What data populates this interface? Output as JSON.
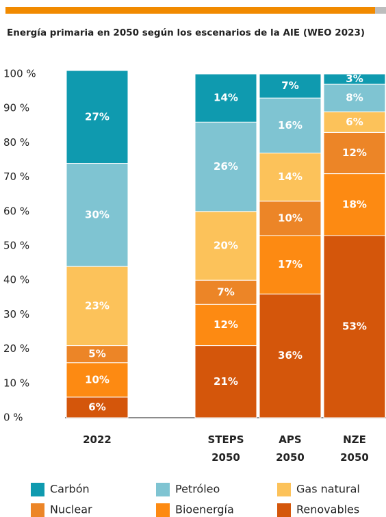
{
  "chart_data": {
    "type": "stacked_bar",
    "title": "Energía primaria en 2050 según los escenarios de la AIE  (WEO 2023)",
    "categories": [
      "2022",
      null,
      "STEPS 2050",
      "APS 2050",
      "NZE 2050"
    ],
    "series": [
      {
        "name": "Carbón",
        "color": "#0f9aaf",
        "values": [
          27,
          null,
          14,
          7,
          3
        ],
        "value_labels": [
          "27%",
          null,
          "14%",
          "7%",
          "3%"
        ]
      },
      {
        "name": "Petróleo",
        "color": "#7fc4d2",
        "values": [
          30,
          null,
          26,
          16,
          8
        ],
        "value_labels": [
          "30%",
          null,
          "26%",
          "16%",
          "8%"
        ]
      },
      {
        "name": "Gas natural",
        "color": "#fcc25a",
        "values": [
          23,
          null,
          20,
          14,
          6
        ],
        "value_labels": [
          "23%",
          null,
          "20%",
          "14%",
          "6%"
        ]
      },
      {
        "name": "Nuclear",
        "color": "#ec8527",
        "values": [
          5,
          null,
          7,
          10,
          12
        ],
        "value_labels": [
          "5%",
          null,
          "7%",
          "10%",
          "12%"
        ]
      },
      {
        "name": "Bioenergía",
        "color": "#fd8a12",
        "values": [
          10,
          null,
          12,
          17,
          18
        ],
        "value_labels": [
          "10%",
          null,
          "12%",
          "17%",
          "18%"
        ]
      },
      {
        "name": "Renovables",
        "color": "#d4560b",
        "values": [
          6,
          null,
          21,
          36,
          53
        ],
        "value_labels": [
          "6%",
          null,
          "21%",
          "36%",
          "53%"
        ]
      }
    ],
    "ylim": [
      0,
      100
    ],
    "yticks": [
      {
        "value": 0,
        "label": "0 %"
      },
      {
        "value": 10,
        "label": "10 %"
      },
      {
        "value": 20,
        "label": "20 %"
      },
      {
        "value": 30,
        "label": "30 %"
      },
      {
        "value": 40,
        "label": "40 %"
      },
      {
        "value": 50,
        "label": "50 %"
      },
      {
        "value": 60,
        "label": "60 %"
      },
      {
        "value": 70,
        "label": "70 %"
      },
      {
        "value": 80,
        "label": "80 %"
      },
      {
        "value": 90,
        "label": "90 %"
      },
      {
        "value": 100,
        "label": "100 %"
      }
    ]
  }
}
